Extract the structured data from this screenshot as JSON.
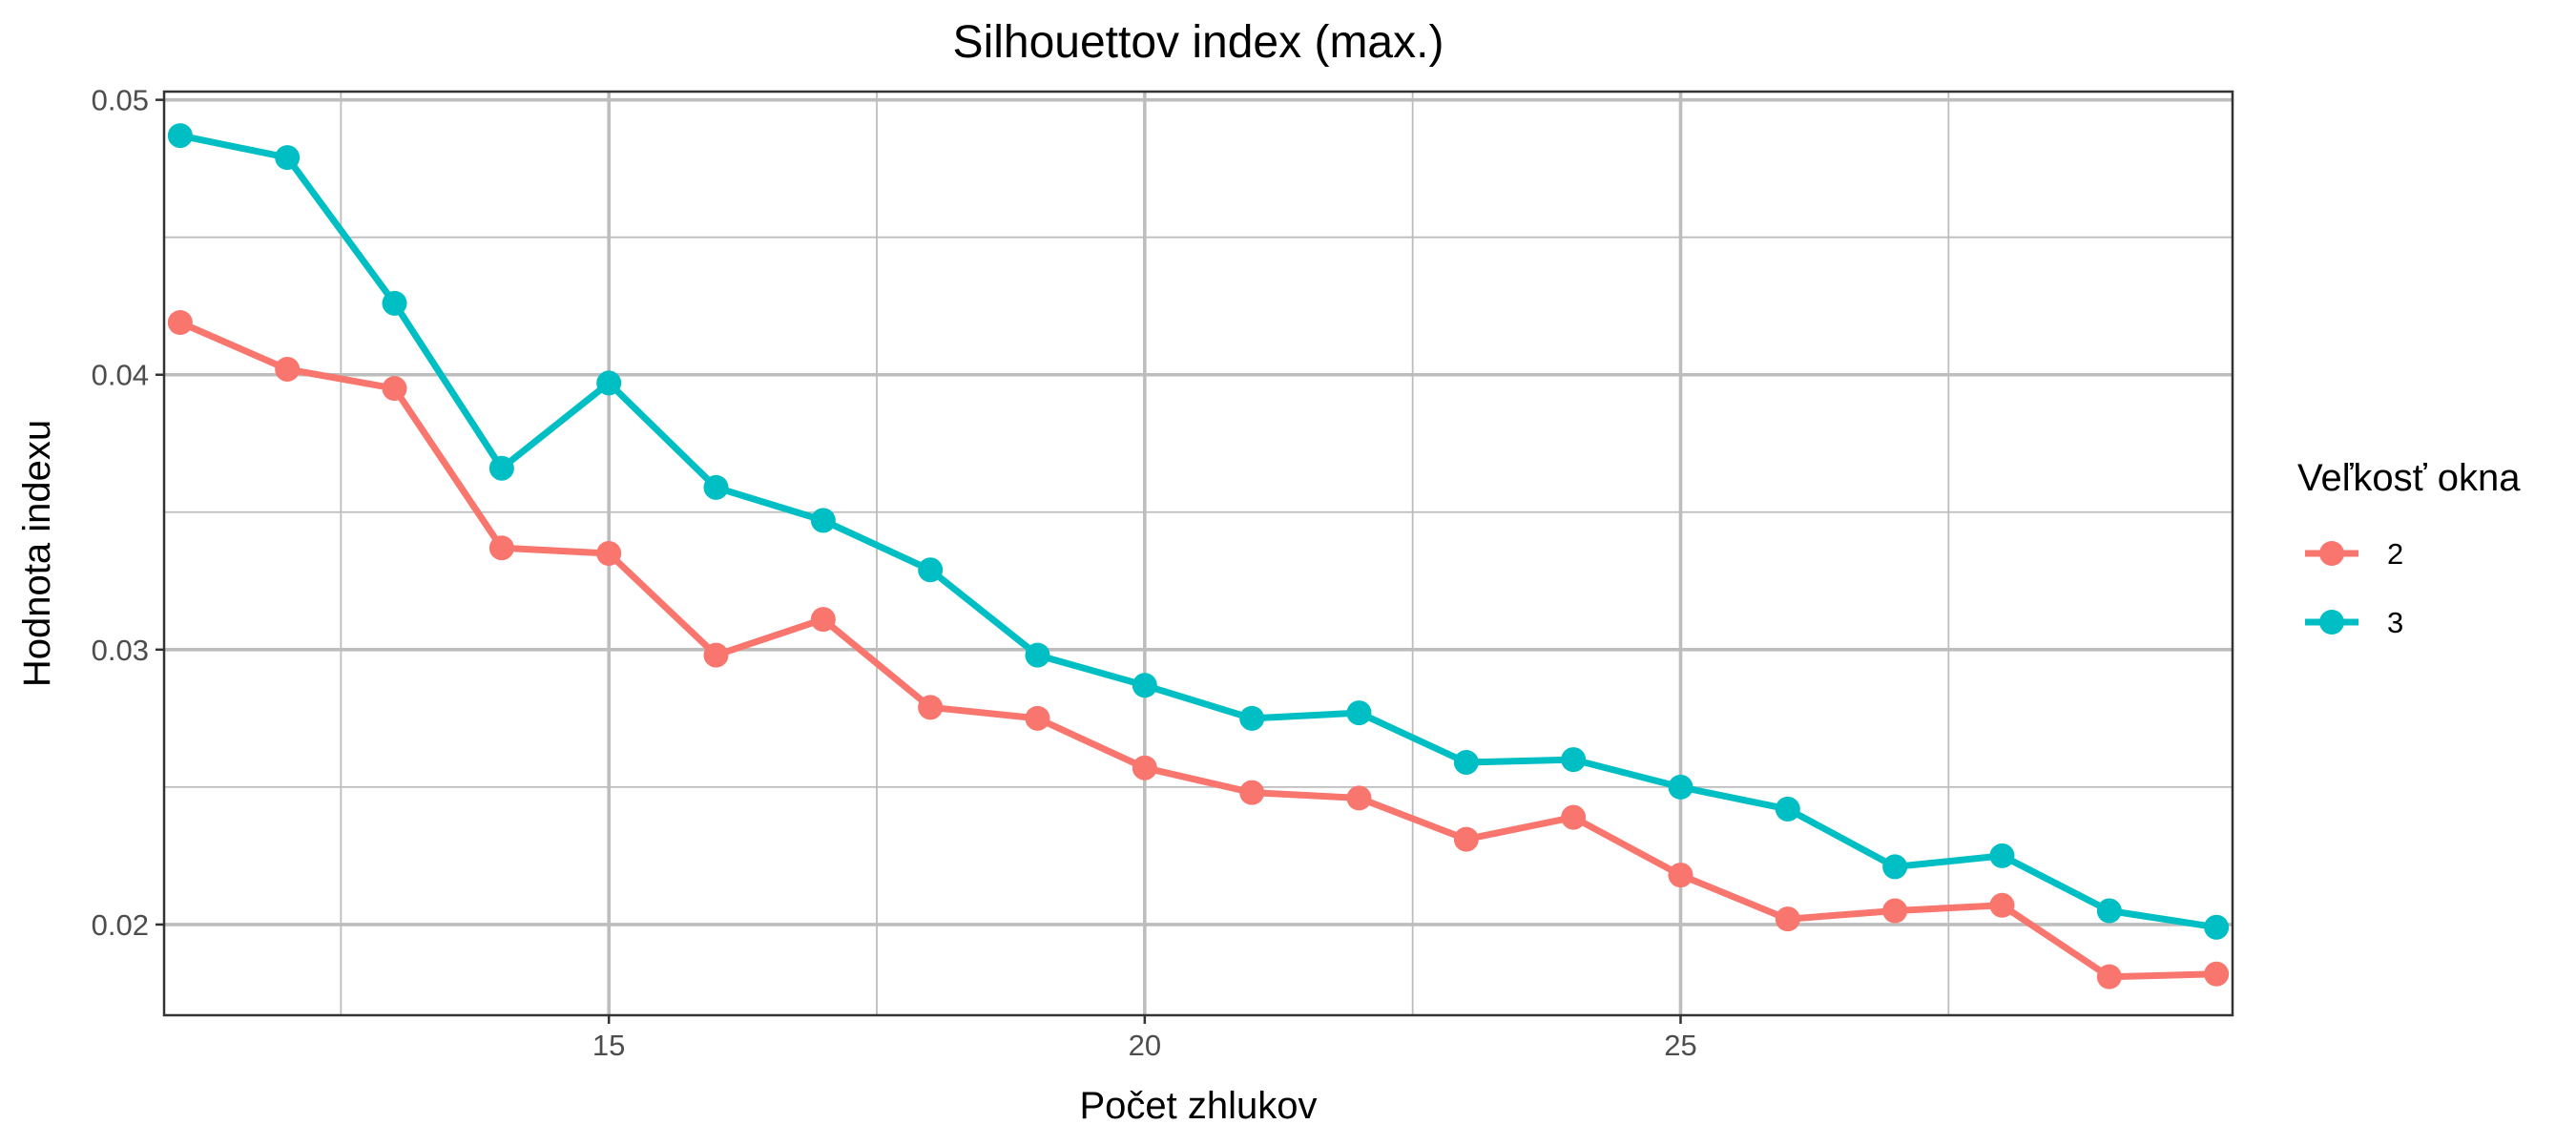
{
  "chart_data": {
    "type": "line",
    "title": "Silhouettov index (max.)",
    "xlabel": "Počet zhlukov",
    "ylabel": "Hodnota indexu",
    "xlim": [
      10.85,
      30.15
    ],
    "ylim": [
      0.0167,
      0.0503
    ],
    "x_ticks": [
      15,
      20,
      25
    ],
    "y_ticks": [
      0.02,
      0.03,
      0.04,
      0.05
    ],
    "x_tick_labels": [
      "15",
      "20",
      "25"
    ],
    "y_tick_labels": [
      "0.02",
      "0.03",
      "0.04",
      "0.05"
    ],
    "grid": true,
    "legend": {
      "title": "Veľkosť okna",
      "placement": "right"
    },
    "x": [
      11,
      12,
      13,
      14,
      15,
      16,
      17,
      18,
      19,
      20,
      21,
      22,
      23,
      24,
      25,
      26,
      27,
      28,
      29,
      30
    ],
    "series": [
      {
        "name": "2",
        "color": "#F8766D",
        "values": [
          0.0419,
          0.0402,
          0.0395,
          0.0337,
          0.0335,
          0.0298,
          0.0311,
          0.0279,
          0.0275,
          0.0257,
          0.0248,
          0.0246,
          0.0231,
          0.0239,
          0.0218,
          0.0202,
          0.0205,
          0.0207,
          0.0181,
          0.0182
        ]
      },
      {
        "name": "3",
        "color": "#00BFC4",
        "values": [
          0.0487,
          0.0479,
          0.0426,
          0.0366,
          0.0397,
          0.0359,
          0.0347,
          0.0329,
          0.0298,
          0.0287,
          0.0275,
          0.0277,
          0.0259,
          0.026,
          0.025,
          0.0242,
          0.0221,
          0.0225,
          0.0205,
          0.0199
        ]
      }
    ]
  }
}
